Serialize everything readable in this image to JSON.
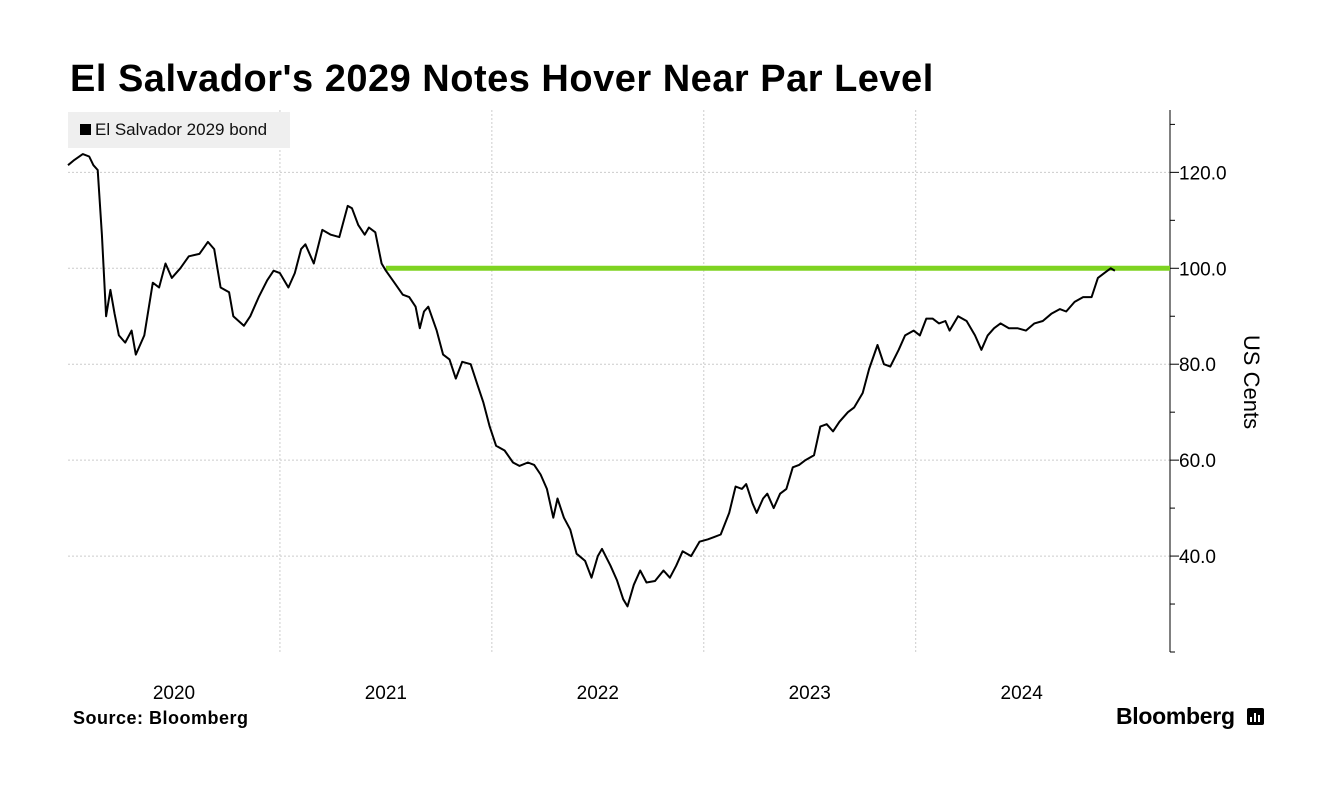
{
  "chart_data": {
    "type": "line",
    "title": "El Salvador's 2029 Notes Hover Near Par Level",
    "ylabel": "US Cents",
    "xlabel": "",
    "xlim": [
      2019.5,
      2024.7
    ],
    "ylim": [
      20,
      133
    ],
    "y_ticks": [
      {
        "value": 120,
        "label": "120.0"
      },
      {
        "value": 100,
        "label": "100.0"
      },
      {
        "value": 80,
        "label": "80.0"
      },
      {
        "value": 60,
        "label": "60.0"
      },
      {
        "value": 40,
        "label": "40.0"
      }
    ],
    "x_ticks": [
      {
        "value": 2020,
        "label": "2020"
      },
      {
        "value": 2021,
        "label": "2021"
      },
      {
        "value": 2022,
        "label": "2022"
      },
      {
        "value": 2023,
        "label": "2023"
      },
      {
        "value": 2024,
        "label": "2024"
      }
    ],
    "legend": [
      "El Salvador 2029 bond"
    ],
    "grid": true,
    "reference_line": {
      "value": 100,
      "x_start": 2021.0,
      "x_end": 2024.7,
      "color": "#7ed321"
    },
    "series": [
      {
        "name": "El Salvador 2029 bond",
        "color": "#000000",
        "points": [
          [
            2019.5,
            121.5
          ],
          [
            2019.53,
            122.6
          ],
          [
            2019.57,
            123.8
          ],
          [
            2019.6,
            123.3
          ],
          [
            2019.62,
            121.5
          ],
          [
            2019.64,
            120.5
          ],
          [
            2019.66,
            107
          ],
          [
            2019.68,
            90
          ],
          [
            2019.7,
            95.5
          ],
          [
            2019.72,
            90.5
          ],
          [
            2019.74,
            86
          ],
          [
            2019.77,
            84.5
          ],
          [
            2019.8,
            87
          ],
          [
            2019.82,
            82
          ],
          [
            2019.86,
            86
          ],
          [
            2019.9,
            97
          ],
          [
            2019.93,
            96
          ],
          [
            2019.96,
            101
          ],
          [
            2019.99,
            98
          ],
          [
            2020.03,
            100
          ],
          [
            2020.07,
            102.5
          ],
          [
            2020.12,
            103
          ],
          [
            2020.16,
            105.5
          ],
          [
            2020.19,
            104
          ],
          [
            2020.22,
            96
          ],
          [
            2020.26,
            95
          ],
          [
            2020.28,
            90
          ],
          [
            2020.33,
            88
          ],
          [
            2020.36,
            90
          ],
          [
            2020.4,
            94
          ],
          [
            2020.44,
            97.5
          ],
          [
            2020.47,
            99.5
          ],
          [
            2020.5,
            99
          ],
          [
            2020.54,
            96
          ],
          [
            2020.57,
            99
          ],
          [
            2020.6,
            104
          ],
          [
            2020.62,
            105
          ],
          [
            2020.66,
            101
          ],
          [
            2020.7,
            108
          ],
          [
            2020.74,
            107
          ],
          [
            2020.78,
            106.5
          ],
          [
            2020.82,
            113
          ],
          [
            2020.84,
            112.5
          ],
          [
            2020.87,
            109
          ],
          [
            2020.9,
            107
          ],
          [
            2020.92,
            108.5
          ],
          [
            2020.95,
            107.5
          ],
          [
            2020.98,
            101
          ],
          [
            2021.0,
            99.5
          ],
          [
            2021.04,
            97
          ],
          [
            2021.08,
            94.5
          ],
          [
            2021.11,
            94
          ],
          [
            2021.14,
            92
          ],
          [
            2021.16,
            87.5
          ],
          [
            2021.18,
            91
          ],
          [
            2021.2,
            92
          ],
          [
            2021.24,
            87
          ],
          [
            2021.27,
            82
          ],
          [
            2021.3,
            81
          ],
          [
            2021.33,
            77
          ],
          [
            2021.36,
            80.5
          ],
          [
            2021.4,
            80
          ],
          [
            2021.43,
            76
          ],
          [
            2021.46,
            72
          ],
          [
            2021.49,
            67
          ],
          [
            2021.52,
            63
          ],
          [
            2021.56,
            62
          ],
          [
            2021.6,
            59.5
          ],
          [
            2021.63,
            58.8
          ],
          [
            2021.67,
            59.5
          ],
          [
            2021.7,
            59
          ],
          [
            2021.73,
            57
          ],
          [
            2021.76,
            54
          ],
          [
            2021.79,
            48
          ],
          [
            2021.81,
            52
          ],
          [
            2021.84,
            48
          ],
          [
            2021.87,
            45.5
          ],
          [
            2021.9,
            40.5
          ],
          [
            2021.94,
            39
          ],
          [
            2021.97,
            35.5
          ],
          [
            2022.0,
            40
          ],
          [
            2022.02,
            41.5
          ],
          [
            2022.06,
            38
          ],
          [
            2022.09,
            35
          ],
          [
            2022.12,
            31
          ],
          [
            2022.14,
            29.5
          ],
          [
            2022.17,
            34
          ],
          [
            2022.2,
            37
          ],
          [
            2022.23,
            34.5
          ],
          [
            2022.27,
            34.8
          ],
          [
            2022.31,
            37
          ],
          [
            2022.34,
            35.5
          ],
          [
            2022.37,
            38
          ],
          [
            2022.4,
            41
          ],
          [
            2022.44,
            40
          ],
          [
            2022.48,
            43
          ],
          [
            2022.52,
            43.5
          ],
          [
            2022.55,
            44
          ],
          [
            2022.58,
            44.5
          ],
          [
            2022.62,
            49
          ],
          [
            2022.65,
            54.5
          ],
          [
            2022.68,
            54
          ],
          [
            2022.7,
            55
          ],
          [
            2022.73,
            51
          ],
          [
            2022.75,
            49
          ],
          [
            2022.78,
            52
          ],
          [
            2022.8,
            53
          ],
          [
            2022.83,
            50
          ],
          [
            2022.86,
            53
          ],
          [
            2022.89,
            54
          ],
          [
            2022.92,
            58.5
          ],
          [
            2022.95,
            59
          ],
          [
            2022.98,
            60
          ],
          [
            2023.02,
            61
          ],
          [
            2023.05,
            67
          ],
          [
            2023.08,
            67.5
          ],
          [
            2023.11,
            66
          ],
          [
            2023.14,
            68
          ],
          [
            2023.18,
            70
          ],
          [
            2023.21,
            71
          ],
          [
            2023.25,
            74
          ],
          [
            2023.28,
            79
          ],
          [
            2023.32,
            84
          ],
          [
            2023.35,
            80
          ],
          [
            2023.38,
            79.5
          ],
          [
            2023.42,
            83
          ],
          [
            2023.45,
            86
          ],
          [
            2023.49,
            87
          ],
          [
            2023.52,
            86
          ],
          [
            2023.55,
            89.5
          ],
          [
            2023.58,
            89.5
          ],
          [
            2023.61,
            88.5
          ],
          [
            2023.64,
            89
          ],
          [
            2023.66,
            87
          ],
          [
            2023.7,
            90
          ],
          [
            2023.74,
            89
          ],
          [
            2023.78,
            86
          ],
          [
            2023.81,
            83
          ],
          [
            2023.84,
            86
          ],
          [
            2023.87,
            87.5
          ],
          [
            2023.9,
            88.5
          ],
          [
            2023.94,
            87.5
          ],
          [
            2023.98,
            87.5
          ],
          [
            2024.02,
            87
          ],
          [
            2024.06,
            88.5
          ],
          [
            2024.1,
            89
          ],
          [
            2024.14,
            90.5
          ],
          [
            2024.18,
            91.5
          ],
          [
            2024.21,
            91
          ],
          [
            2024.25,
            93
          ],
          [
            2024.29,
            94
          ],
          [
            2024.33,
            94
          ],
          [
            2024.36,
            98
          ],
          [
            2024.39,
            99
          ],
          [
            2024.42,
            100
          ],
          [
            2024.44,
            99.5
          ]
        ]
      }
    ]
  },
  "footer": {
    "source_label": "Source:",
    "source_value": "Bloomberg",
    "brand": "Bloomberg"
  },
  "colors": {
    "reference_line": "#7ed321",
    "series": "#000000",
    "grid": "#cccccc"
  },
  "icons": {
    "brand_logo": "bloomberg-chart-icon"
  }
}
